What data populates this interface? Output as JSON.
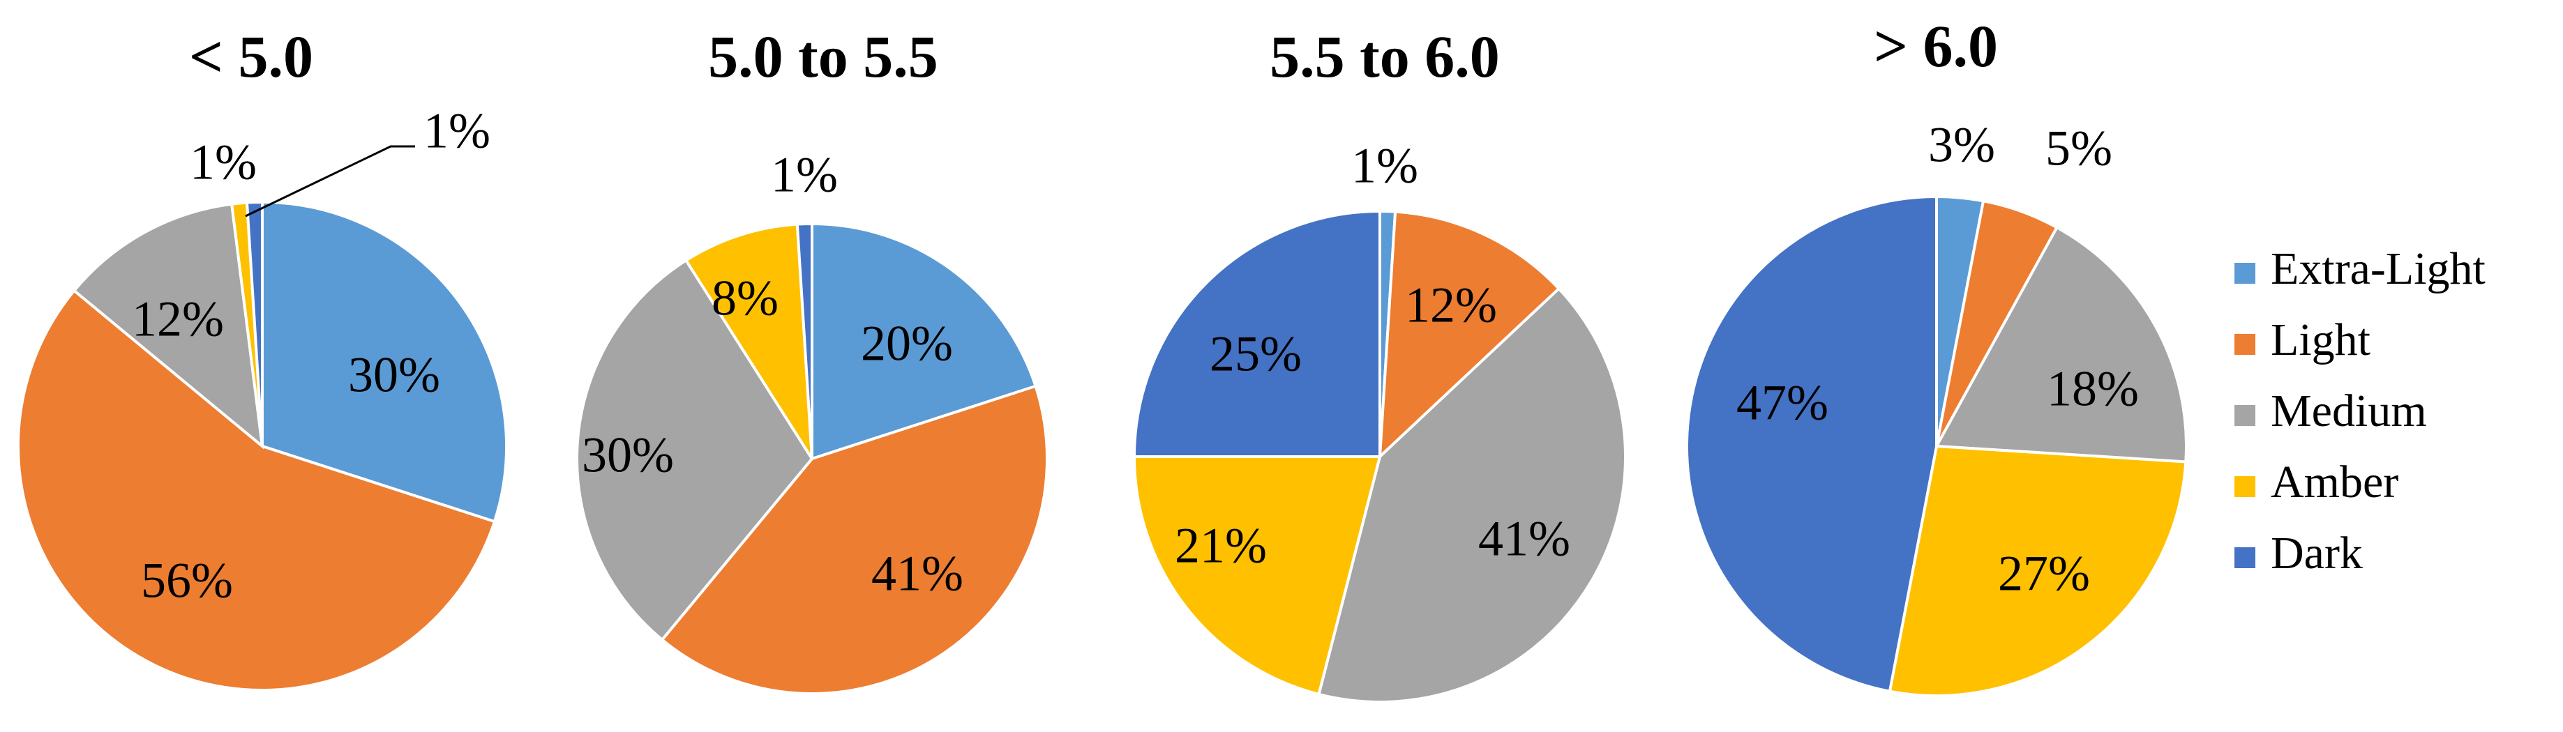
{
  "legend": [
    {
      "name": "Extra-Light",
      "color": "#5B9BD5"
    },
    {
      "name": "Light",
      "color": "#ED7D31"
    },
    {
      "name": "Medium",
      "color": "#A5A5A5"
    },
    {
      "name": "Amber",
      "color": "#FFC000"
    },
    {
      "name": "Dark",
      "color": "#4472C4"
    }
  ],
  "chart_data": [
    {
      "type": "pie",
      "title": "< 5.0",
      "categories": [
        "Extra-Light",
        "Light",
        "Medium",
        "Amber",
        "Dark"
      ],
      "values": [
        30,
        56,
        12,
        1,
        1
      ],
      "labels": [
        "30%",
        "56%",
        "12%",
        "1%",
        "1%"
      ]
    },
    {
      "type": "pie",
      "title": "5.0 to 5.5",
      "categories": [
        "Extra-Light",
        "Light",
        "Medium",
        "Amber",
        "Dark"
      ],
      "values": [
        20,
        41,
        30,
        8,
        1
      ],
      "labels": [
        "20%",
        "41%",
        "30%",
        "8%",
        "1%"
      ]
    },
    {
      "type": "pie",
      "title": "5.5 to 6.0",
      "categories": [
        "Extra-Light",
        "Light",
        "Medium",
        "Amber",
        "Dark"
      ],
      "values": [
        1,
        12,
        41,
        21,
        25
      ],
      "labels": [
        "1%",
        "12%",
        "41%",
        "21%",
        "25%"
      ]
    },
    {
      "type": "pie",
      "title": "> 6.0",
      "categories": [
        "Extra-Light",
        "Light",
        "Medium",
        "Amber",
        "Dark"
      ],
      "values": [
        3,
        5,
        18,
        27,
        47
      ],
      "labels": [
        "3%",
        "5%",
        "18%",
        "27%",
        "47%"
      ]
    }
  ]
}
